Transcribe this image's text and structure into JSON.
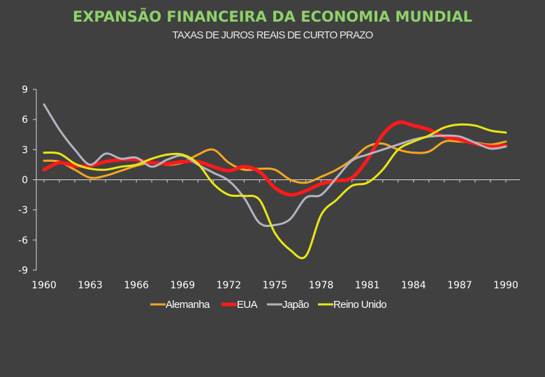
{
  "colors": {
    "background": "#404040",
    "title": "#8fd16a",
    "subtitle": "#e8e8e8",
    "axis": "#d9d9d9",
    "tick_text": "#ffffff",
    "legend_text": "#ffffff"
  },
  "chart_data": {
    "type": "line",
    "title": "EXPANSÃO FINANCEIRA DA ECONOMIA MUNDIAL",
    "subtitle": "TAXAS DE JUROS REAIS DE CURTO PRAZO",
    "xlabel": "",
    "ylabel": "",
    "xlim": [
      1960,
      1990
    ],
    "ylim": [
      -9,
      9
    ],
    "x_ticks": [
      "1960",
      "1963",
      "1966",
      "1969",
      "1972",
      "1975",
      "1978",
      "1981",
      "1984",
      "1987",
      "1990"
    ],
    "y_ticks": [
      "9",
      "6",
      "3",
      "0",
      "-3",
      "-6",
      "-9"
    ],
    "grid": false,
    "legend_position": "bottom",
    "x": [
      1960,
      1961,
      1962,
      1963,
      1964,
      1965,
      1966,
      1967,
      1968,
      1969,
      1970,
      1971,
      1972,
      1973,
      1974,
      1975,
      1976,
      1977,
      1978,
      1979,
      1980,
      1981,
      1982,
      1983,
      1984,
      1985,
      1986,
      1987,
      1988,
      1989,
      1990
    ],
    "series": [
      {
        "name": "Alemanha",
        "color": "#f5a623",
        "width": 3,
        "values": [
          1.9,
          1.8,
          1.0,
          0.2,
          0.4,
          0.9,
          1.4,
          1.7,
          1.5,
          1.7,
          2.5,
          3.0,
          1.7,
          1.0,
          1.1,
          1.0,
          0.0,
          -0.3,
          0.3,
          1.0,
          2.0,
          3.3,
          3.6,
          3.0,
          2.7,
          2.8,
          3.8,
          3.8,
          3.7,
          3.5,
          3.8
        ]
      },
      {
        "name": "EUA",
        "color": "#ff1a1a",
        "width": 5,
        "values": [
          1.0,
          1.7,
          1.4,
          1.4,
          1.8,
          2.0,
          2.0,
          1.7,
          1.6,
          1.8,
          1.8,
          1.3,
          0.9,
          1.3,
          0.8,
          -0.8,
          -1.5,
          -1.1,
          -0.4,
          -0.1,
          0.2,
          2.0,
          4.5,
          5.7,
          5.4,
          5.0,
          4.3,
          4.0,
          3.6,
          3.3,
          3.4
        ]
      },
      {
        "name": "Japão",
        "color": "#b3b3c4",
        "width": 3,
        "values": [
          7.5,
          5.0,
          3.0,
          1.5,
          2.6,
          2.1,
          2.2,
          1.3,
          2.0,
          2.4,
          1.5,
          0.7,
          -0.1,
          -1.8,
          -4.3,
          -4.5,
          -3.9,
          -1.8,
          -1.5,
          0.2,
          1.9,
          2.5,
          3.0,
          3.5,
          4.0,
          4.3,
          4.4,
          4.3,
          3.7,
          3.1,
          3.3
        ]
      },
      {
        "name": "Reino Unido",
        "color": "#e8e617",
        "width": 3,
        "values": [
          2.7,
          2.6,
          1.6,
          1.1,
          1.0,
          1.3,
          1.5,
          2.1,
          2.5,
          2.5,
          1.6,
          -0.4,
          -1.5,
          -1.6,
          -2.0,
          -5.3,
          -7.0,
          -7.6,
          -3.5,
          -2.0,
          -0.6,
          -0.3,
          1.0,
          3.0,
          3.8,
          4.4,
          5.2,
          5.5,
          5.4,
          4.9,
          4.7
        ]
      }
    ]
  }
}
